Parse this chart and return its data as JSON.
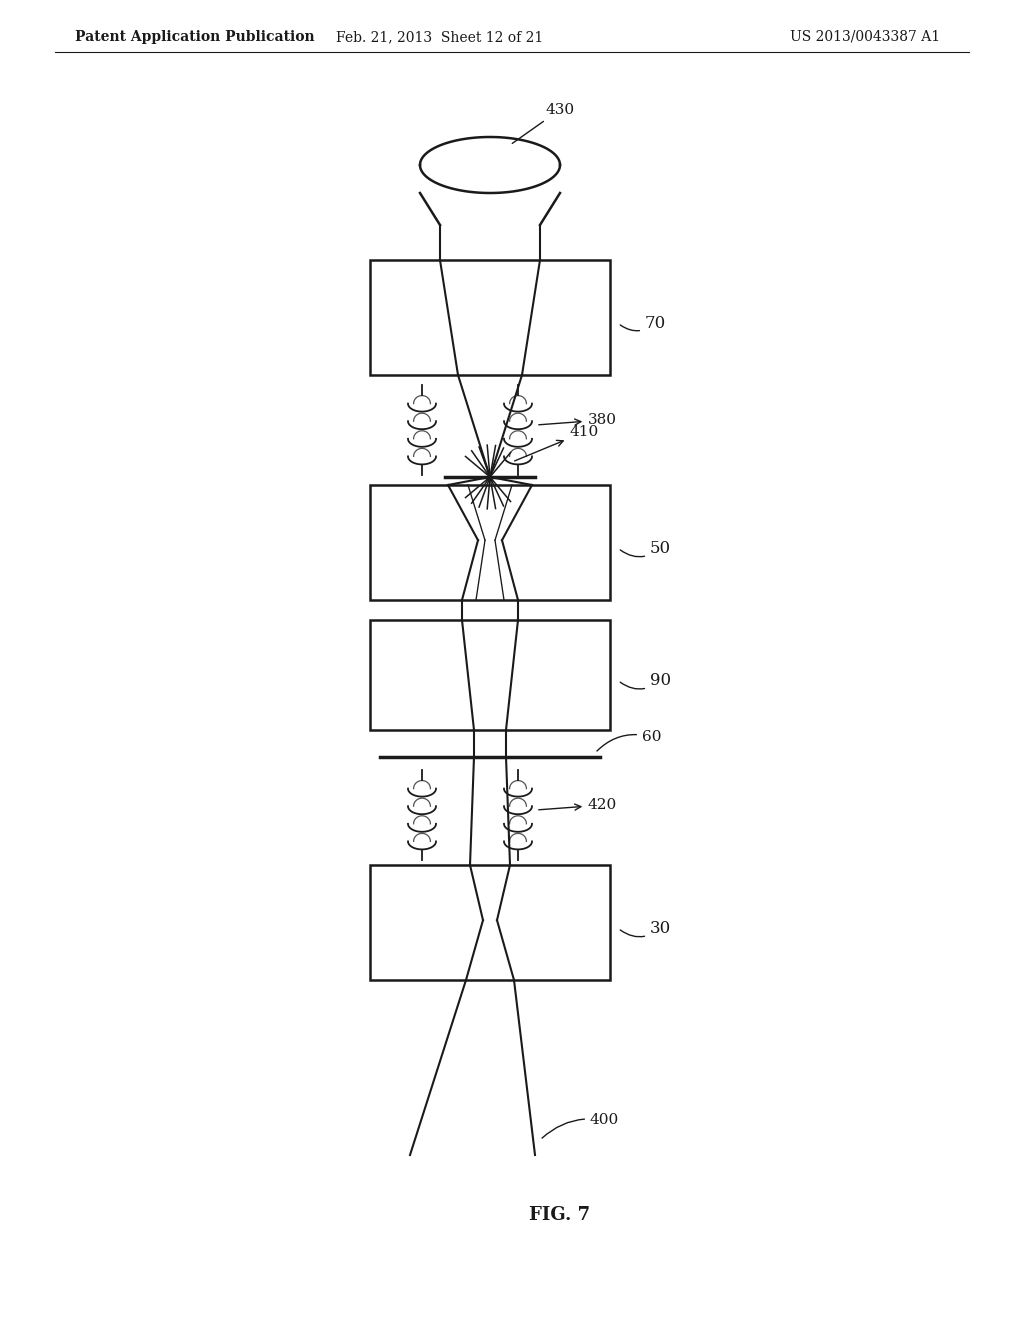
{
  "bg_color": "#ffffff",
  "header_left": "Patent Application Publication",
  "header_mid": "Feb. 21, 2013  Sheet 12 of 21",
  "header_right": "US 2013/0043387 A1",
  "fig_label": "FIG. 7",
  "line_color": "#1a1a1a"
}
